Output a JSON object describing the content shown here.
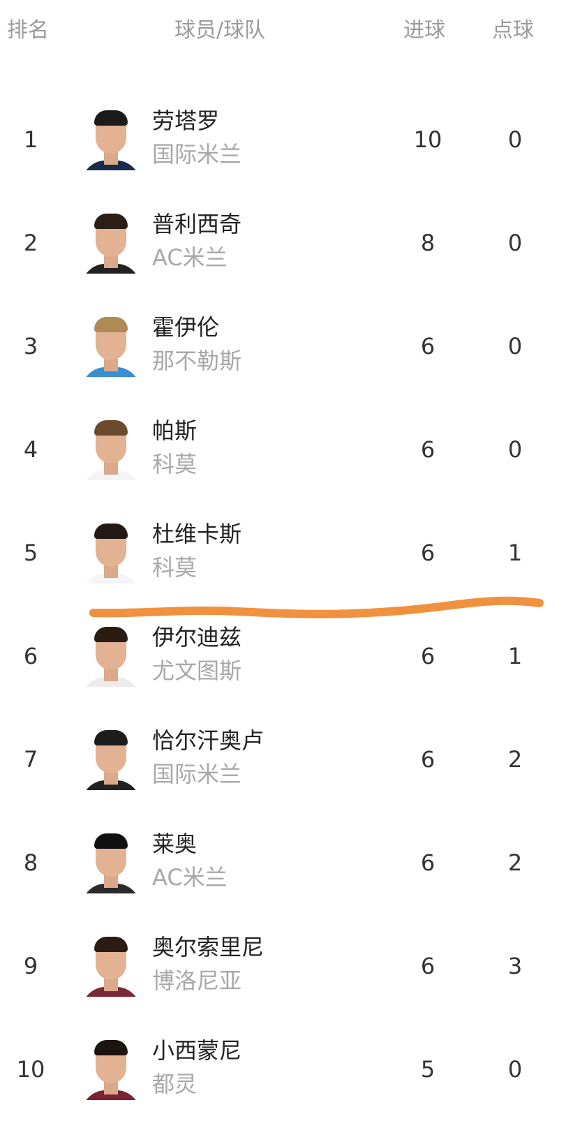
{
  "header": {
    "rank": "排名",
    "player_team": "球员/球队",
    "goals": "进球",
    "penalties": "点球"
  },
  "rows": [
    {
      "rank": "1",
      "name": "劳塔罗",
      "team": "国际米兰",
      "goals": "10",
      "penalties": "0",
      "jersey": "#1b2a4a",
      "hair": "#1a1a1a"
    },
    {
      "rank": "2",
      "name": "普利西奇",
      "team": "AC米兰",
      "goals": "8",
      "penalties": "0",
      "jersey": "#222222",
      "hair": "#2a1e16"
    },
    {
      "rank": "3",
      "name": "霍伊伦",
      "team": "那不勒斯",
      "goals": "6",
      "penalties": "0",
      "jersey": "#3a8fd0",
      "hair": "#b08a55"
    },
    {
      "rank": "4",
      "name": "帕斯",
      "team": "科莫",
      "goals": "6",
      "penalties": "0",
      "jersey": "#f2f4f8",
      "hair": "#6b4a2e"
    },
    {
      "rank": "5",
      "name": "杜维卡斯",
      "team": "科莫",
      "goals": "6",
      "penalties": "1",
      "jersey": "#f2f4f8",
      "hair": "#231a14"
    },
    {
      "rank": "6",
      "name": "伊尔迪兹",
      "team": "尤文图斯",
      "goals": "6",
      "penalties": "1",
      "jersey": "#ececec",
      "hair": "#2a1c12"
    },
    {
      "rank": "7",
      "name": "恰尔汗奥卢",
      "team": "国际米兰",
      "goals": "6",
      "penalties": "2",
      "jersey": "#222222",
      "hair": "#1c1c1c"
    },
    {
      "rank": "8",
      "name": "莱奥",
      "team": "AC米兰",
      "goals": "6",
      "penalties": "2",
      "jersey": "#2a2a2a",
      "hair": "#111111"
    },
    {
      "rank": "9",
      "name": "奥尔索里尼",
      "team": "博洛尼亚",
      "goals": "6",
      "penalties": "3",
      "jersey": "#7a2a35",
      "hair": "#2a1c14"
    },
    {
      "rank": "10",
      "name": "小西蒙尼",
      "team": "都灵",
      "goals": "5",
      "penalties": "0",
      "jersey": "#7a2430",
      "hair": "#1c1410"
    }
  ],
  "colors": {
    "annotation_line": "#f0913f",
    "header_text": "#9a9a9a",
    "team_text": "#a8a8a8"
  }
}
